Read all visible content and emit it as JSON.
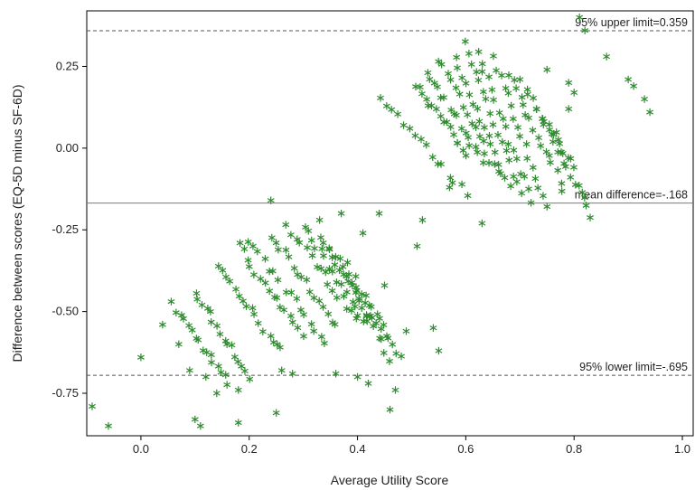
{
  "chart_data": {
    "type": "scatter",
    "xlabel": "Average Utility Score",
    "ylabel": "Difference between scores (EQ-5D minus SF-6D)",
    "xlim": [
      -0.1,
      1.02
    ],
    "ylim": [
      -0.88,
      0.42
    ],
    "x_ticks": [
      0.0,
      0.2,
      0.4,
      0.6,
      0.8,
      1.0
    ],
    "x_tick_labels": [
      "0.0",
      "0.2",
      "0.4",
      "0.6",
      "0.8",
      "1.0"
    ],
    "y_ticks": [
      0.25,
      0.0,
      -0.25,
      -0.5,
      -0.75
    ],
    "y_tick_labels": [
      "0.25",
      "0.00",
      "-0.25",
      "-0.50",
      "-0.75"
    ],
    "grid": false,
    "marker": "asterisk",
    "marker_color": "#2e8b2e",
    "reference_lines": [
      {
        "label": "95% upper limit=0.359",
        "y": 0.359,
        "style": "dashed"
      },
      {
        "label": "mean difference=-.168",
        "y": -0.168,
        "style": "solid"
      },
      {
        "label": "95% lower limit=-.695",
        "y": -0.695,
        "style": "dashed"
      }
    ],
    "series": [
      {
        "points": [
          [
            -0.09,
            -0.79
          ],
          [
            -0.06,
            -0.85
          ],
          [
            0.0,
            -0.64
          ],
          [
            0.04,
            -0.54
          ],
          [
            0.07,
            -0.6
          ],
          [
            0.09,
            -0.68
          ],
          [
            0.1,
            -0.83
          ],
          [
            0.11,
            -0.85
          ],
          [
            0.12,
            -0.7
          ],
          [
            0.14,
            -0.75
          ],
          [
            0.18,
            -0.74
          ],
          [
            0.18,
            -0.84
          ],
          [
            0.24,
            -0.16
          ],
          [
            0.25,
            -0.81
          ],
          [
            0.33,
            -0.22
          ],
          [
            0.37,
            -0.2
          ],
          [
            0.41,
            -0.26
          ],
          [
            0.44,
            -0.2
          ],
          [
            0.46,
            -0.8
          ],
          [
            0.47,
            -0.74
          ],
          [
            0.45,
            -0.42
          ],
          [
            0.49,
            -0.56
          ],
          [
            0.51,
            -0.3
          ],
          [
            0.52,
            -0.22
          ],
          [
            0.54,
            -0.55
          ],
          [
            0.55,
            -0.62
          ],
          [
            0.57,
            -0.12
          ],
          [
            0.63,
            -0.23
          ],
          [
            0.7,
            0.21
          ],
          [
            0.75,
            0.24
          ],
          [
            0.79,
            0.2
          ],
          [
            0.81,
            0.4
          ],
          [
            0.82,
            0.36
          ],
          [
            0.86,
            0.28
          ],
          [
            0.9,
            0.21
          ],
          [
            0.91,
            0.19
          ],
          [
            0.93,
            0.15
          ],
          [
            0.94,
            0.11
          ],
          [
            0.8,
            0.17
          ],
          [
            0.79,
            0.12
          ],
          [
            0.26,
            -0.68
          ],
          [
            0.28,
            -0.69
          ],
          [
            0.36,
            -0.69
          ],
          [
            0.4,
            -0.7
          ],
          [
            0.42,
            -0.72
          ]
        ],
        "bands": [
          {
            "x": [
              0.06,
              0.16
            ],
            "y": [
              -0.48,
              -0.72
            ]
          },
          {
            "x": [
              0.1,
              0.2
            ],
            "y": [
              -0.44,
              -0.7
            ]
          },
          {
            "x": [
              0.14,
              0.26
            ],
            "y": [
              -0.36,
              -0.62
            ]
          },
          {
            "x": [
              0.18,
              0.3
            ],
            "y": [
              -0.3,
              -0.58
            ]
          },
          {
            "x": [
              0.2,
              0.34
            ],
            "y": [
              -0.28,
              -0.6
            ]
          },
          {
            "x": [
              0.24,
              0.36
            ],
            "y": [
              -0.27,
              -0.54
            ]
          },
          {
            "x": [
              0.27,
              0.4
            ],
            "y": [
              -0.24,
              -0.52
            ]
          },
          {
            "x": [
              0.3,
              0.42
            ],
            "y": [
              -0.24,
              -0.54
            ]
          },
          {
            "x": [
              0.33,
              0.44
            ],
            "y": [
              -0.28,
              -0.56
            ]
          },
          {
            "x": [
              0.35,
              0.46
            ],
            "y": [
              -0.3,
              -0.64
            ]
          },
          {
            "x": [
              0.38,
              0.48
            ],
            "y": [
              -0.36,
              -0.64
            ]
          },
          {
            "x": [
              0.44,
              0.6
            ],
            "y": [
              0.16,
              -0.14
            ]
          },
          {
            "x": [
              0.51,
              0.6
            ],
            "y": [
              0.2,
              -0.02
            ]
          },
          {
            "x": [
              0.53,
              0.63
            ],
            "y": [
              0.24,
              -0.04
            ]
          },
          {
            "x": [
              0.55,
              0.66
            ],
            "y": [
              0.27,
              -0.08
            ]
          },
          {
            "x": [
              0.58,
              0.68
            ],
            "y": [
              0.27,
              -0.12
            ]
          },
          {
            "x": [
              0.6,
              0.7
            ],
            "y": [
              0.33,
              -0.14
            ]
          },
          {
            "x": [
              0.62,
              0.72
            ],
            "y": [
              0.3,
              -0.16
            ]
          },
          {
            "x": [
              0.65,
              0.75
            ],
            "y": [
              0.28,
              -0.18
            ]
          },
          {
            "x": [
              0.68,
              0.78
            ],
            "y": [
              0.22,
              -0.12
            ]
          },
          {
            "x": [
              0.71,
              0.8
            ],
            "y": [
              0.18,
              -0.06
            ]
          },
          {
            "x": [
              0.74,
              0.83
            ],
            "y": [
              0.1,
              -0.2
            ]
          }
        ]
      }
    ]
  }
}
